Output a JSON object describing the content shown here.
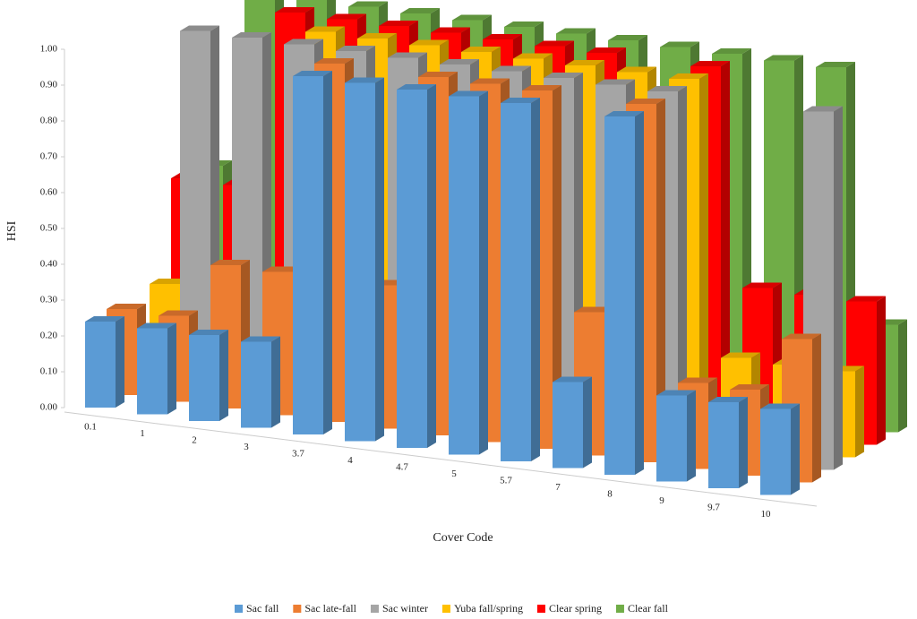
{
  "chart_data": {
    "type": "bar3d",
    "y_label": "HSI",
    "x_label": "Cover Code",
    "categories": [
      "0.1",
      "1",
      "2",
      "3",
      "3.7",
      "4",
      "4.7",
      "5",
      "5.7",
      "7",
      "8",
      "9",
      "9.7",
      "10"
    ],
    "ylim": [
      0,
      1
    ],
    "yticks": [
      {
        "value": 0,
        "label": "0.00"
      },
      {
        "value": 0.1,
        "label": "0.10"
      },
      {
        "value": 0.2,
        "label": "0.20"
      },
      {
        "value": 0.3,
        "label": "0.30"
      },
      {
        "value": 0.4,
        "label": "0.40"
      },
      {
        "value": 0.5,
        "label": "0.50"
      },
      {
        "value": 0.6,
        "label": "0.60"
      },
      {
        "value": 0.7,
        "label": "0.70"
      },
      {
        "value": 0.8,
        "label": "0.80"
      },
      {
        "value": 0.9,
        "label": "0.90"
      },
      {
        "value": 1,
        "label": "1.00"
      }
    ],
    "legend": "bottom",
    "series": [
      {
        "name": "Sac fall",
        "color": "#5b9bd5",
        "values": [
          0.24,
          0.24,
          0.24,
          0.24,
          1.0,
          1.0,
          1.0,
          1.0,
          1.0,
          0.24,
          1.0,
          0.24,
          0.24,
          0.24
        ]
      },
      {
        "name": "Sac late-fall",
        "color": "#ed7d31",
        "values": [
          0.24,
          0.24,
          0.4,
          0.4,
          1.0,
          0.4,
          1.0,
          1.0,
          1.0,
          0.4,
          1.0,
          0.24,
          0.24,
          0.4
        ]
      },
      {
        "name": "Sac winter",
        "color": "#a5a5a5",
        "values": [
          0.0,
          1.0,
          1.0,
          1.0,
          1.0,
          1.0,
          1.0,
          1.0,
          1.0,
          1.0,
          1.0,
          0.05,
          0.05,
          1.0
        ]
      },
      {
        "name": "Yuba fall/spring",
        "color": "#ffc000",
        "values": [
          0.24,
          0.24,
          0.24,
          1.0,
          1.0,
          1.0,
          1.0,
          1.0,
          1.0,
          1.0,
          1.0,
          0.24,
          0.24,
          0.24
        ]
      },
      {
        "name": "Clear spring",
        "color": "#ff0000",
        "values": [
          0.5,
          0.5,
          1.0,
          1.0,
          1.0,
          1.0,
          1.0,
          1.0,
          1.0,
          0.4,
          1.0,
          0.4,
          0.4,
          0.4
        ]
      },
      {
        "name": "Clear fall",
        "color": "#70ad47",
        "values": [
          0.5,
          1.0,
          1.0,
          1.0,
          1.0,
          1.0,
          1.0,
          1.0,
          1.0,
          1.0,
          1.0,
          1.0,
          1.0,
          0.3
        ]
      }
    ]
  }
}
